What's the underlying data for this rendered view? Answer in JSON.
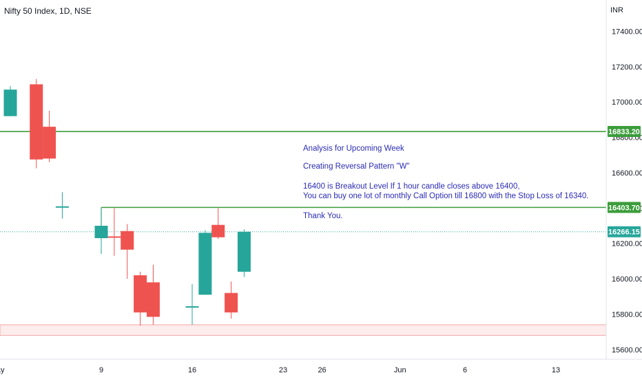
{
  "header": {
    "title": "Nifty 50 Index, 1D, NSE",
    "currency": "INR"
  },
  "colors": {
    "up": "#26a69a",
    "down": "#ef5350",
    "level": "#3b9d3b",
    "zone_fill": "#fdecec",
    "zone_stroke": "#f2a6a6",
    "text_note": "#2b2bb5",
    "current_price_tag": "#26a69a"
  },
  "chart_data": {
    "type": "candlestick",
    "title": "Nifty 50 Index, 1D, NSE",
    "ylabel": "INR",
    "ylim": [
      15545,
      17495
    ],
    "y_ticks": [
      17400,
      17200,
      17000,
      16800,
      16600,
      16400,
      16200,
      16000,
      15800,
      15600
    ],
    "y_tick_labels": [
      "17400.00",
      "17200.00",
      "17000.00",
      "16800.00",
      "16600.00",
      "16400.00",
      "16200.00",
      "16000.00",
      "15800.00",
      "15600.00"
    ],
    "x_ticks": [
      {
        "label": "May",
        "date": "2022-05-01"
      },
      {
        "label": "9",
        "date": "2022-05-09"
      },
      {
        "label": "16",
        "date": "2022-05-16"
      },
      {
        "label": "23",
        "date": "2022-05-23"
      },
      {
        "label": "26",
        "date": "2022-05-26"
      },
      {
        "label": "Jun",
        "date": "2022-06-01"
      },
      {
        "label": "6",
        "date": "2022-06-06"
      },
      {
        "label": "13",
        "date": "2022-06-13"
      }
    ],
    "candles": [
      {
        "date": "2022-04-29",
        "open": 17330,
        "high": 17380,
        "low": 17050,
        "close": 17100
      },
      {
        "date": "2022-05-02",
        "open": 16920,
        "high": 17090,
        "low": 16920,
        "close": 17070
      },
      {
        "date": "2022-05-04",
        "open": 17100,
        "high": 17130,
        "low": 16625,
        "close": 16675
      },
      {
        "date": "2022-05-05",
        "open": 16860,
        "high": 16950,
        "low": 16660,
        "close": 16680
      },
      {
        "date": "2022-05-06",
        "open": 16410,
        "high": 16490,
        "low": 16340,
        "close": 16410
      },
      {
        "date": "2022-05-09",
        "open": 16230,
        "high": 16400,
        "low": 16140,
        "close": 16300
      },
      {
        "date": "2022-05-10",
        "open": 16240,
        "high": 16400,
        "low": 16130,
        "close": 16235
      },
      {
        "date": "2022-05-11",
        "open": 16270,
        "high": 16310,
        "low": 16000,
        "close": 16165
      },
      {
        "date": "2022-05-12",
        "open": 16020,
        "high": 16040,
        "low": 15735,
        "close": 15810
      },
      {
        "date": "2022-05-13",
        "open": 15980,
        "high": 16080,
        "low": 15740,
        "close": 15785
      },
      {
        "date": "2022-05-16",
        "open": 15845,
        "high": 15970,
        "low": 15740,
        "close": 15845
      },
      {
        "date": "2022-05-17",
        "open": 15910,
        "high": 16275,
        "low": 15910,
        "close": 16260
      },
      {
        "date": "2022-05-18",
        "open": 16305,
        "high": 16400,
        "low": 16225,
        "close": 16235
      },
      {
        "date": "2022-05-19",
        "open": 15920,
        "high": 15985,
        "low": 15775,
        "close": 15810
      },
      {
        "date": "2022-05-20",
        "open": 16040,
        "high": 16280,
        "low": 16010,
        "close": 16266.15
      }
    ],
    "horizontal_levels": [
      {
        "price": 16833.2,
        "label": "16833.20"
      },
      {
        "price": 16403.7,
        "label": "16403.70"
      }
    ],
    "current_price": {
      "price": 16266.15,
      "label": "16266.15"
    },
    "support_zone": {
      "from": 15680,
      "to": 15740
    },
    "annotations": [
      "Analysis for Upcoming Week",
      "Creating Reversal Pattern  \"W\"",
      "16400  is Breakout Level If 1 hour candle closes above 16400,",
      "You can buy one lot of monthly Call Option till 16800 with the Stop Loss of 16340.",
      "Thank You."
    ],
    "grid": false
  }
}
